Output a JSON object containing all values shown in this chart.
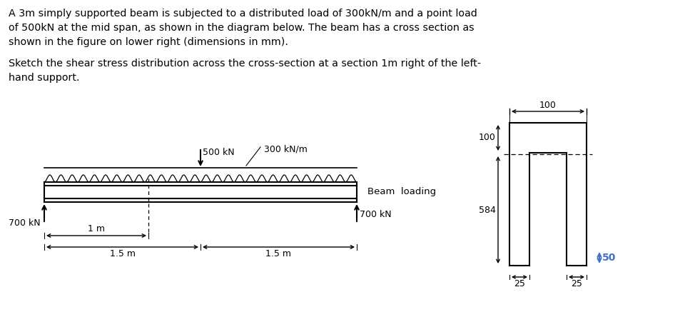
{
  "title_text": "A 3m simply supported beam is subjected to a distributed load of 300kN/m and a point load\nof 500kN at the mid span, as shown in the diagram below. The beam has a cross section as\nshown in the figure on lower right (dimensions in mm).",
  "subtitle_text": "Sketch the shear stress distribution across the cross-section at a section 1m right of the left-\nhand support.",
  "beam_label": "Beam  loading",
  "load_500": "500 kN",
  "load_300": "300 kN/m",
  "reaction_left": "700 kN",
  "reaction_right": "700 kN",
  "dim_1m": "1 m",
  "dim_15m_left": "1.5 m",
  "dim_15m_right": "1.5 m",
  "cs_top_width": "100",
  "cs_flange_height": "100",
  "cs_web_height": "584",
  "cs_flange_thickness": "50",
  "cs_web_left": "25",
  "cs_web_right": "25",
  "text_color": "#000000",
  "blue_color": "#4472C4",
  "bg_color": "#ffffff"
}
